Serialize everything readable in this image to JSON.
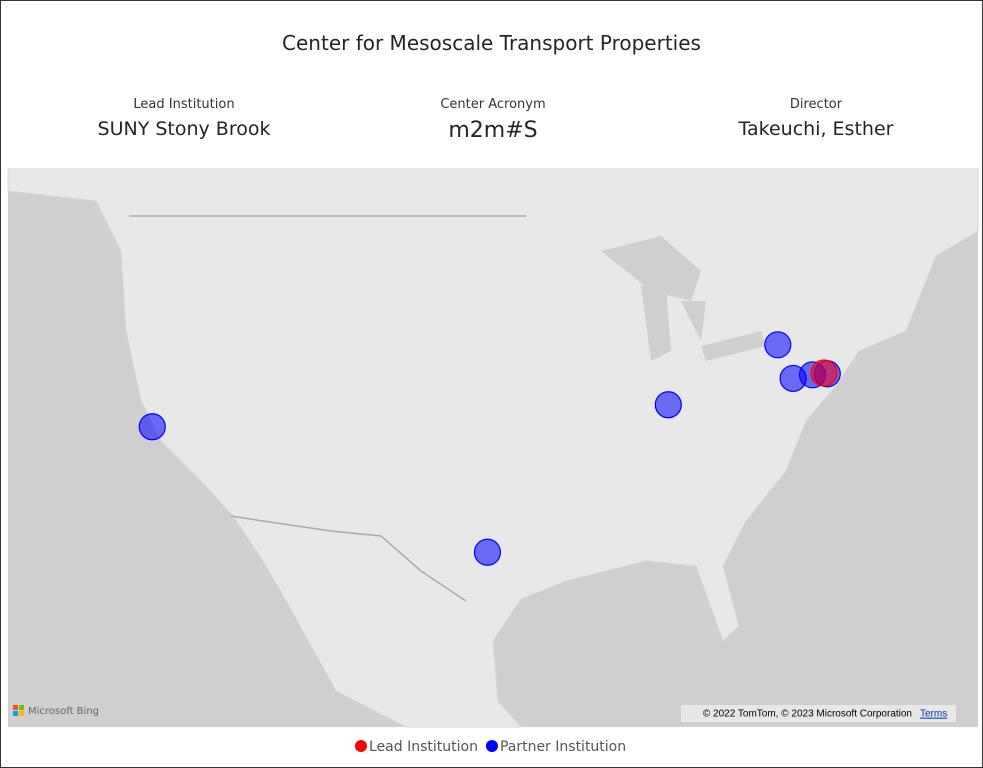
{
  "header": {
    "title": "Center for Mesoscale Transport Properties"
  },
  "cards": [
    {
      "label": "Lead Institution",
      "value": "SUNY Stony Brook"
    },
    {
      "label": "Center Acronym",
      "value": "m2m#S"
    },
    {
      "label": "Director",
      "value": "Takeuchi, Esther"
    }
  ],
  "map": {
    "type": "map",
    "logo": "Microsoft Bing",
    "attribution": "© 2022 TomTom, © 2023 Microsoft Corporation",
    "terms": "Terms",
    "series": [
      {
        "name": "Lead Institution",
        "color": "#ff0000",
        "points": [
          {
            "lon": -73.12,
            "lat": 40.91
          }
        ]
      },
      {
        "name": "Partner Institution",
        "color": "#0000ff",
        "points": [
          {
            "lon": -122.26,
            "lat": 37.87
          },
          {
            "lon": -97.74,
            "lat": 30.28
          },
          {
            "lon": -84.51,
            "lat": 39.13
          },
          {
            "lon": -76.5,
            "lat": 42.45
          },
          {
            "lon": -75.38,
            "lat": 40.61
          },
          {
            "lon": -73.96,
            "lat": 40.81
          },
          {
            "lon": -72.88,
            "lat": 40.87
          }
        ]
      }
    ]
  }
}
